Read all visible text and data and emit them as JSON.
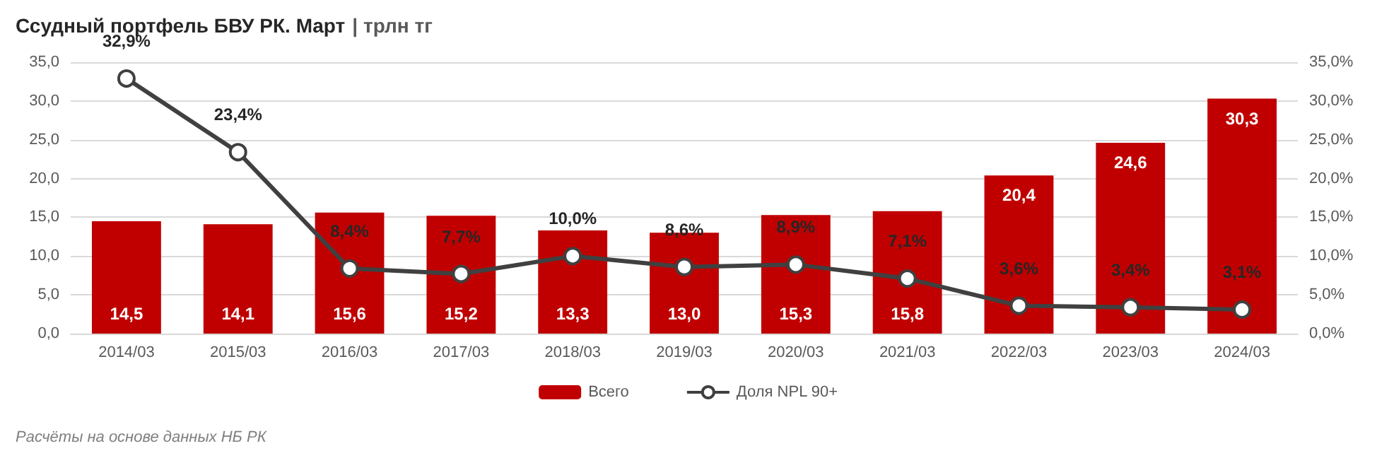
{
  "chart_data": {
    "type": "bar",
    "title": "Ссудный портфель БВУ РК. Март",
    "subtitle": "| трлн тг",
    "categories": [
      "2014/03",
      "2015/03",
      "2016/03",
      "2017/03",
      "2018/03",
      "2019/03",
      "2020/03",
      "2021/03",
      "2022/03",
      "2023/03",
      "2024/03"
    ],
    "series": [
      {
        "name": "Всего",
        "color": "#c00000",
        "values": [
          14.5,
          14.1,
          15.6,
          15.2,
          13.3,
          13.0,
          15.3,
          15.8,
          20.4,
          24.6,
          30.3
        ],
        "value_labels": [
          "14,5",
          "14,1",
          "15,6",
          "15,2",
          "13,3",
          "13,0",
          "15,3",
          "15,8",
          "20,4",
          "24,6",
          "30,3"
        ]
      },
      {
        "name": "Доля NPL 90+",
        "type": "line",
        "axis": "y2",
        "color": "#404040",
        "marker": "circle",
        "values": [
          32.9,
          23.4,
          8.4,
          7.7,
          10.0,
          8.6,
          8.9,
          7.1,
          3.6,
          3.4,
          3.1
        ],
        "value_labels": [
          "32,9%",
          "23,4%",
          "8,4%",
          "7,7%",
          "10,0%",
          "8,6%",
          "8,9%",
          "7,1%",
          "3,6%",
          "3,4%",
          "3,1%"
        ]
      }
    ],
    "ylim": [
      0,
      35
    ],
    "yticks": [
      {
        "value": 0,
        "label": "0,0"
      },
      {
        "value": 5,
        "label": "5,0"
      },
      {
        "value": 10,
        "label": "10,0"
      },
      {
        "value": 15,
        "label": "15,0"
      },
      {
        "value": 20,
        "label": "20,0"
      },
      {
        "value": 25,
        "label": "25,0"
      },
      {
        "value": 30,
        "label": "30,0"
      },
      {
        "value": 35,
        "label": "35,0"
      }
    ],
    "y2lim": [
      0,
      35
    ],
    "y2ticks": [
      {
        "value": 0,
        "label": "0,0%"
      },
      {
        "value": 5,
        "label": "5,0%"
      },
      {
        "value": 10,
        "label": "10,0%"
      },
      {
        "value": 15,
        "label": "15,0%"
      },
      {
        "value": 20,
        "label": "20,0%"
      },
      {
        "value": 25,
        "label": "25,0%"
      },
      {
        "value": 30,
        "label": "30,0%"
      },
      {
        "value": 35,
        "label": "35,0%"
      }
    ],
    "grid": "y",
    "legend": "bottom",
    "annotations": [
      "Расчёты на основе данных НБ РК"
    ]
  }
}
